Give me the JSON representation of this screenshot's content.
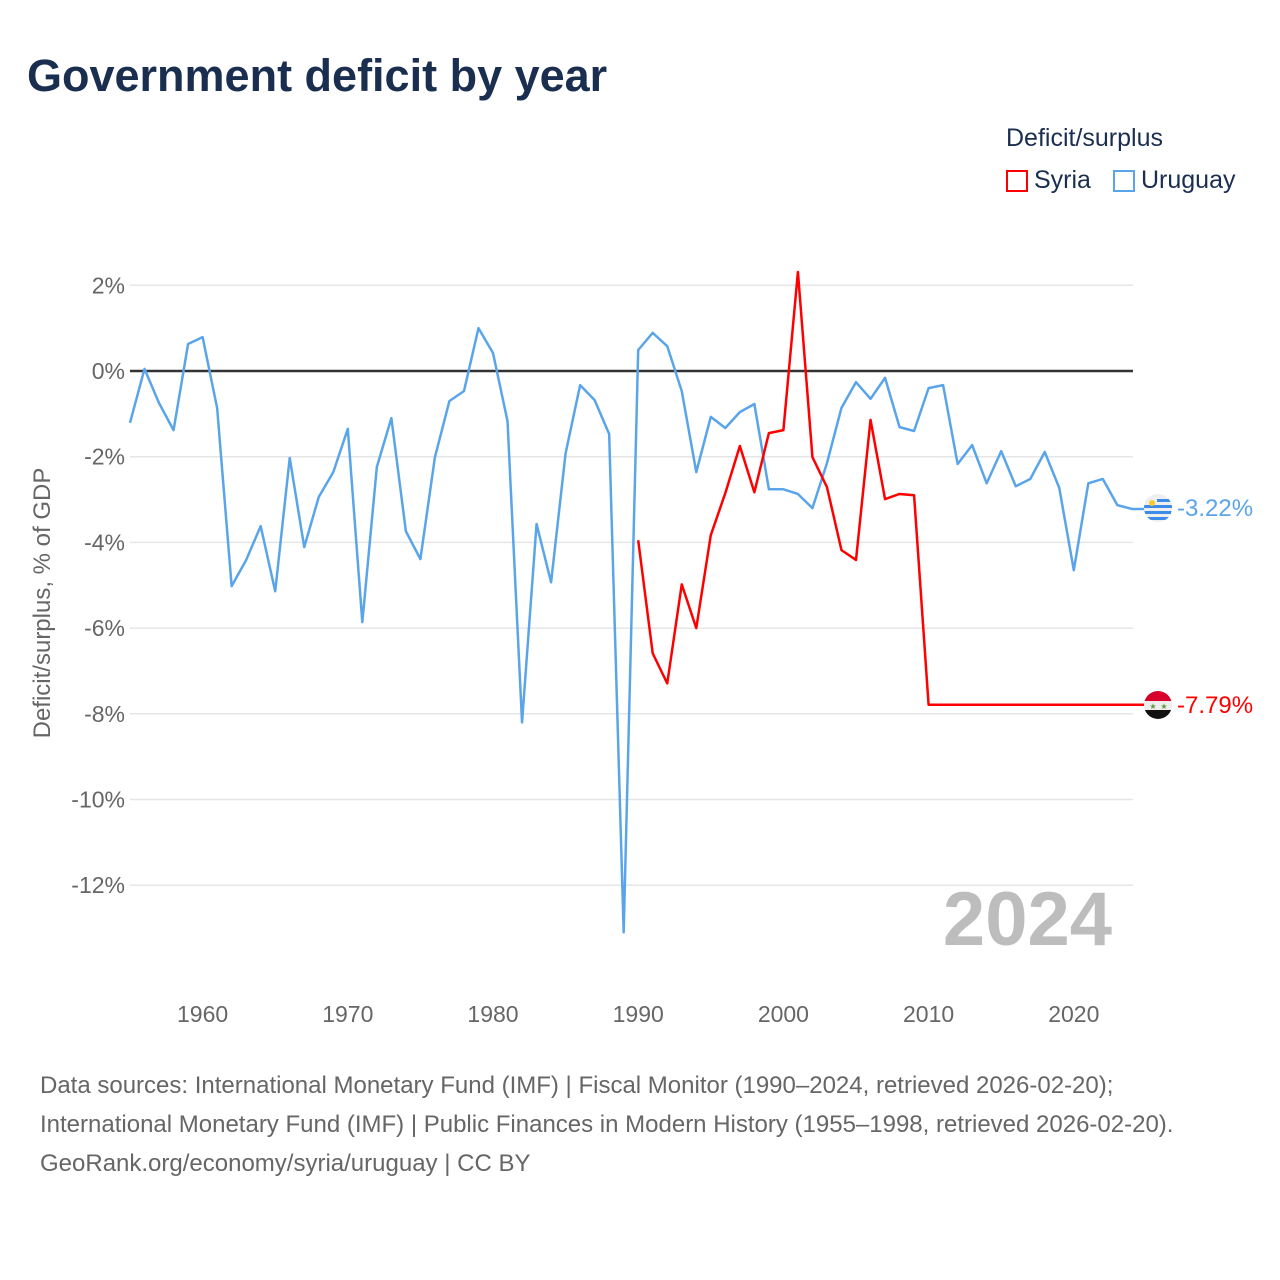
{
  "title": "Government deficit by year",
  "legend": {
    "title": "Deficit/surplus",
    "items": [
      {
        "label": "Syria",
        "color": "#ff0000"
      },
      {
        "label": "Uruguay",
        "color": "#5aa5ea"
      }
    ]
  },
  "footer": {
    "sources": "Data sources: International Monetary Fund (IMF) | Fiscal Monitor (1990–2024, retrieved 2026-02-20); International Monetary Fund (IMF) | Public Finances in Modern History (1955–1998, retrieved 2026-02-20).",
    "credit": "GeoRank.org/economy/syria/uruguay | CC BY"
  },
  "chart_data": {
    "type": "line",
    "title": "Government deficit by year",
    "ylabel": "Deficit/surplus, % of GDP",
    "xlim": [
      1955,
      2024
    ],
    "ylim": [
      -13.5,
      2.5
    ],
    "xticks": [
      1960,
      1970,
      1980,
      1990,
      2000,
      2010,
      2020
    ],
    "yticks": [
      2,
      0,
      -2,
      -4,
      -6,
      -8,
      -10,
      -12
    ],
    "ytick_labels": [
      "2%",
      "0%",
      "-2%",
      "-4%",
      "-6%",
      "-8%",
      "-10%",
      "-12%"
    ],
    "year_label": "2024",
    "series": [
      {
        "name": "Uruguay",
        "color": "#5aa5ea",
        "end_label": "-3.22%",
        "x_start": 1955,
        "values": [
          -1.21,
          0.05,
          -0.75,
          -1.38,
          0.63,
          0.79,
          -0.86,
          -5.02,
          -4.41,
          -3.62,
          -5.14,
          -2.03,
          -4.11,
          -2.94,
          -2.36,
          -1.35,
          -5.86,
          -2.24,
          -1.1,
          -3.74,
          -4.39,
          -2.01,
          -0.7,
          -0.47,
          1.0,
          0.42,
          -1.17,
          -8.2,
          -3.57,
          -4.93,
          -1.92,
          -0.33,
          -0.68,
          -1.47,
          -13.1,
          0.49,
          0.89,
          0.58,
          -0.47,
          -2.36,
          -1.07,
          -1.33,
          -0.96,
          -0.77,
          -2.76,
          -2.76,
          -2.87,
          -3.2,
          -2.15,
          -0.86,
          -0.26,
          -0.65,
          -0.16,
          -1.31,
          -1.4,
          -0.4,
          -0.33,
          -2.17,
          -1.73,
          -2.62,
          -1.87,
          -2.69,
          -2.52,
          -1.89,
          -2.73,
          -4.65,
          -2.62,
          -2.52,
          -3.13,
          -3.22
        ]
      },
      {
        "name": "Syria",
        "color": "#ff0000",
        "end_label": "-7.79%",
        "x_start": 1990,
        "values": [
          -3.95,
          -6.59,
          -7.29,
          -4.98,
          -6.0,
          -3.83,
          -2.85,
          -1.75,
          -2.83,
          -1.45,
          -1.38,
          2.31,
          -2.01,
          -2.71,
          -4.18,
          -4.41,
          -1.14,
          -2.99,
          -2.87,
          -2.9,
          -7.79,
          -7.79,
          -7.79,
          -7.79,
          -7.79,
          -7.79,
          -7.79,
          -7.79,
          -7.79,
          -7.79,
          -7.79,
          -7.79,
          -7.79,
          -7.79,
          -7.79
        ]
      }
    ]
  }
}
